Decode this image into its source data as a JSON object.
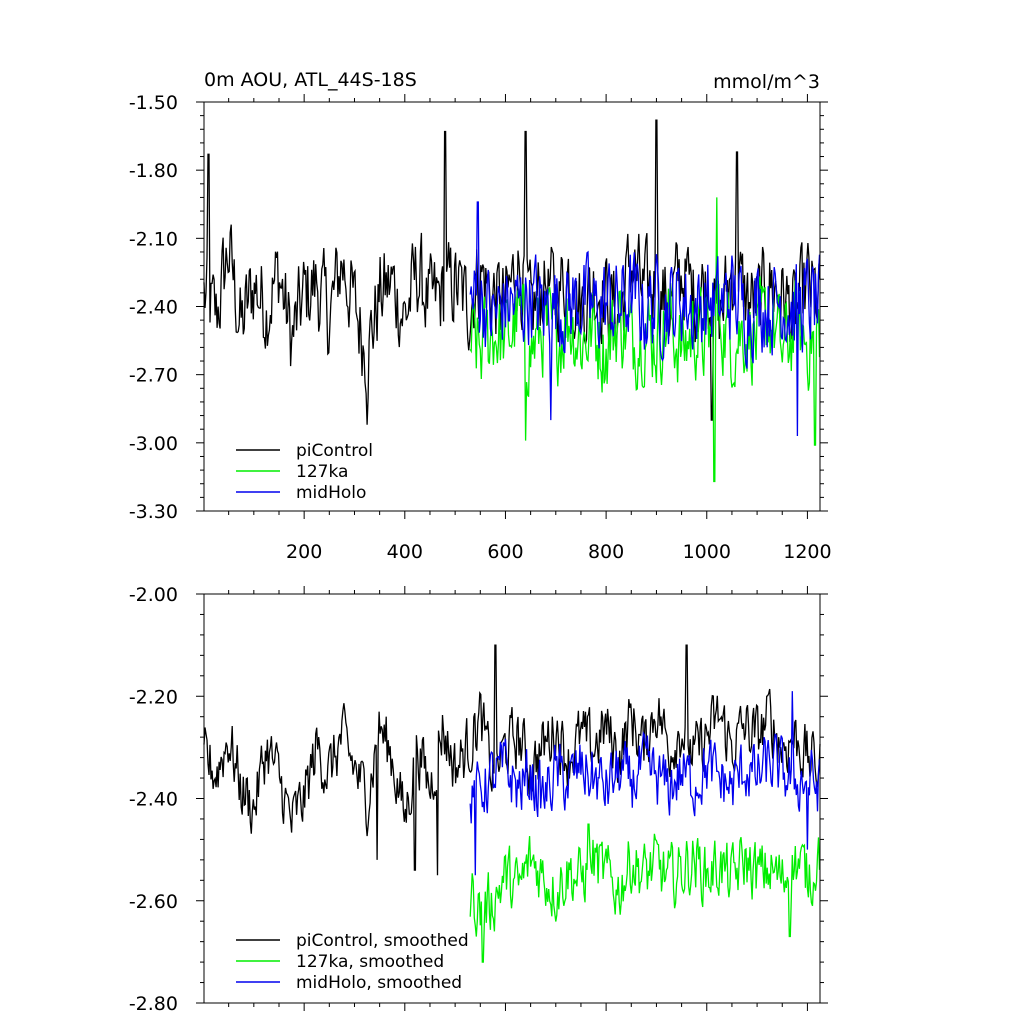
{
  "chart_data": [
    {
      "type": "line",
      "title_left": "0m AOU, ATL_44S-18S",
      "title_right": "mmol/m^3",
      "xlim": [
        1,
        1225
      ],
      "ylim": [
        -3.3,
        -1.5
      ],
      "xticks": [
        200,
        400,
        600,
        800,
        1000,
        1200
      ],
      "xtick_labels": [
        "200",
        "400",
        "600",
        "800",
        "1000",
        "1200"
      ],
      "yticks": [
        -1.5,
        -1.8,
        -2.1,
        -2.4,
        -2.7,
        -3.0,
        -3.3
      ],
      "ytick_labels": [
        "-1.50",
        "-1.80",
        "-2.10",
        "-2.40",
        "-2.70",
        "-3.00",
        "-3.30"
      ],
      "legend_position": "bottom-left",
      "series": [
        {
          "name": "piControl",
          "color": "#000000",
          "x": [
            1,
            25,
            50,
            75,
            100,
            125,
            150,
            175,
            200,
            225,
            250,
            275,
            300,
            325,
            350,
            375,
            400,
            425,
            450,
            475,
            500,
            525,
            550,
            575,
            600,
            625,
            650,
            675,
            700,
            725,
            750,
            775,
            800,
            825,
            850,
            875,
            900,
            925,
            950,
            975,
            1000,
            1025,
            1050,
            1075,
            1100,
            1125,
            1150,
            1175,
            1200,
            1225
          ],
          "values": [
            -2.35,
            -2.45,
            -2.15,
            -2.5,
            -2.3,
            -2.4,
            -2.25,
            -2.55,
            -2.35,
            -2.3,
            -2.45,
            -2.2,
            -2.4,
            -2.6,
            -2.35,
            -2.3,
            -2.45,
            -2.25,
            -2.4,
            -2.35,
            -2.3,
            -2.4,
            -2.25,
            -2.35,
            -2.4,
            -2.2,
            -2.45,
            -2.3,
            -2.35,
            -2.25,
            -2.4,
            -2.3,
            -2.35,
            -2.45,
            -2.2,
            -2.35,
            -2.3,
            -2.4,
            -2.25,
            -2.35,
            -2.3,
            -2.45,
            -2.25,
            -2.35,
            -2.4,
            -2.3,
            -2.35,
            -2.45,
            -2.3,
            -2.4
          ],
          "spikes": [
            [
              10,
              -1.73
            ],
            [
              480,
              -1.63
            ],
            [
              640,
              -1.63
            ],
            [
              900,
              -1.58
            ],
            [
              1060,
              -1.72
            ],
            [
              325,
              -2.92
            ],
            [
              1010,
              -2.9
            ]
          ]
        },
        {
          "name": "127ka",
          "color": "#00ee00",
          "x": [
            530,
            550,
            575,
            600,
            625,
            650,
            675,
            700,
            725,
            750,
            775,
            800,
            825,
            850,
            875,
            900,
            925,
            950,
            975,
            1000,
            1025,
            1050,
            1075,
            1100,
            1125,
            1150,
            1175,
            1200,
            1225
          ],
          "values": [
            -2.55,
            -2.6,
            -2.5,
            -2.55,
            -2.45,
            -2.6,
            -2.5,
            -2.55,
            -2.45,
            -2.55,
            -2.5,
            -2.6,
            -2.45,
            -2.55,
            -2.5,
            -2.55,
            -2.45,
            -2.6,
            -2.5,
            -2.55,
            -2.45,
            -2.55,
            -2.5,
            -2.55,
            -2.45,
            -2.6,
            -2.5,
            -2.55,
            -2.5
          ],
          "spikes": [
            [
              1015,
              -3.17
            ],
            [
              1215,
              -3.01
            ],
            [
              640,
              -2.99
            ],
            [
              1020,
              -1.92
            ]
          ]
        },
        {
          "name": "midHolo",
          "color": "#0000ee",
          "x": [
            530,
            550,
            575,
            600,
            625,
            650,
            675,
            700,
            725,
            750,
            775,
            800,
            825,
            850,
            875,
            900,
            925,
            950,
            975,
            1000,
            1025,
            1050,
            1075,
            1100,
            1125,
            1150,
            1175,
            1200,
            1225
          ],
          "values": [
            -2.4,
            -2.35,
            -2.45,
            -2.38,
            -2.4,
            -2.35,
            -2.42,
            -2.38,
            -2.4,
            -2.36,
            -2.42,
            -2.38,
            -2.4,
            -2.35,
            -2.42,
            -2.38,
            -2.4,
            -2.36,
            -2.42,
            -2.38,
            -2.4,
            -2.35,
            -2.42,
            -2.38,
            -2.4,
            -2.36,
            -2.42,
            -2.38,
            -2.4
          ],
          "spikes": [
            [
              545,
              -1.94
            ],
            [
              1180,
              -2.97
            ],
            [
              690,
              -2.9
            ]
          ]
        }
      ]
    },
    {
      "type": "line",
      "xlim": [
        1,
        1225
      ],
      "ylim": [
        -2.8,
        -2.0
      ],
      "yticks": [
        -2.0,
        -2.2,
        -2.4,
        -2.6,
        -2.8
      ],
      "ytick_labels": [
        "-2.00",
        "-2.20",
        "-2.40",
        "-2.60",
        "-2.80"
      ],
      "legend_position": "bottom-left",
      "series": [
        {
          "name": "piControl, smoothed",
          "color": "#000000",
          "x": [
            1,
            25,
            50,
            75,
            100,
            125,
            150,
            175,
            200,
            225,
            250,
            275,
            300,
            325,
            350,
            375,
            400,
            425,
            450,
            475,
            500,
            525,
            550,
            575,
            600,
            625,
            650,
            675,
            700,
            725,
            750,
            775,
            800,
            825,
            850,
            875,
            900,
            925,
            950,
            975,
            1000,
            1025,
            1050,
            1075,
            1100,
            1125,
            1150,
            1175,
            1200,
            1225
          ],
          "values": [
            -2.32,
            -2.35,
            -2.28,
            -2.38,
            -2.42,
            -2.3,
            -2.36,
            -2.45,
            -2.4,
            -2.3,
            -2.35,
            -2.28,
            -2.34,
            -2.4,
            -2.26,
            -2.32,
            -2.44,
            -2.3,
            -2.38,
            -2.26,
            -2.34,
            -2.3,
            -2.24,
            -2.36,
            -2.3,
            -2.28,
            -2.34,
            -2.3,
            -2.26,
            -2.32,
            -2.28,
            -2.3,
            -2.26,
            -2.32,
            -2.24,
            -2.3,
            -2.22,
            -2.3,
            -2.26,
            -2.32,
            -2.28,
            -2.24,
            -2.3,
            -2.26,
            -2.28,
            -2.24,
            -2.3,
            -2.28,
            -2.32,
            -2.34
          ],
          "spikes": [
            [
              580,
              -2.1
            ],
            [
              960,
              -2.1
            ],
            [
              345,
              -2.52
            ],
            [
              420,
              -2.54
            ],
            [
              465,
              -2.55
            ]
          ]
        },
        {
          "name": "127ka, smoothed",
          "color": "#00ee00",
          "x": [
            530,
            550,
            575,
            600,
            625,
            650,
            675,
            700,
            725,
            750,
            775,
            800,
            825,
            850,
            875,
            900,
            925,
            950,
            975,
            1000,
            1025,
            1050,
            1075,
            1100,
            1125,
            1150,
            1175,
            1200,
            1225
          ],
          "values": [
            -2.58,
            -2.62,
            -2.6,
            -2.55,
            -2.58,
            -2.52,
            -2.55,
            -2.58,
            -2.54,
            -2.56,
            -2.52,
            -2.55,
            -2.58,
            -2.52,
            -2.55,
            -2.53,
            -2.56,
            -2.54,
            -2.52,
            -2.55,
            -2.53,
            -2.56,
            -2.52,
            -2.55,
            -2.54,
            -2.56,
            -2.52,
            -2.55,
            -2.5
          ],
          "spikes": [
            [
              555,
              -2.72
            ],
            [
              1165,
              -2.67
            ],
            [
              1210,
              -2.61
            ],
            [
              765,
              -2.45
            ]
          ]
        },
        {
          "name": "midHolo, smoothed",
          "color": "#0000ee",
          "x": [
            530,
            550,
            575,
            600,
            625,
            650,
            675,
            700,
            725,
            750,
            775,
            800,
            825,
            850,
            875,
            900,
            925,
            950,
            975,
            1000,
            1025,
            1050,
            1075,
            1100,
            1125,
            1150,
            1175,
            1200,
            1225
          ],
          "values": [
            -2.42,
            -2.38,
            -2.36,
            -2.34,
            -2.38,
            -2.36,
            -2.4,
            -2.35,
            -2.37,
            -2.34,
            -2.36,
            -2.38,
            -2.35,
            -2.37,
            -2.34,
            -2.36,
            -2.38,
            -2.35,
            -2.37,
            -2.34,
            -2.36,
            -2.38,
            -2.34,
            -2.36,
            -2.33,
            -2.35,
            -2.37,
            -2.36,
            -2.38
          ],
          "spikes": [
            [
              540,
              -2.55
            ],
            [
              1170,
              -2.19
            ],
            [
              1200,
              -2.5
            ]
          ]
        }
      ]
    }
  ]
}
